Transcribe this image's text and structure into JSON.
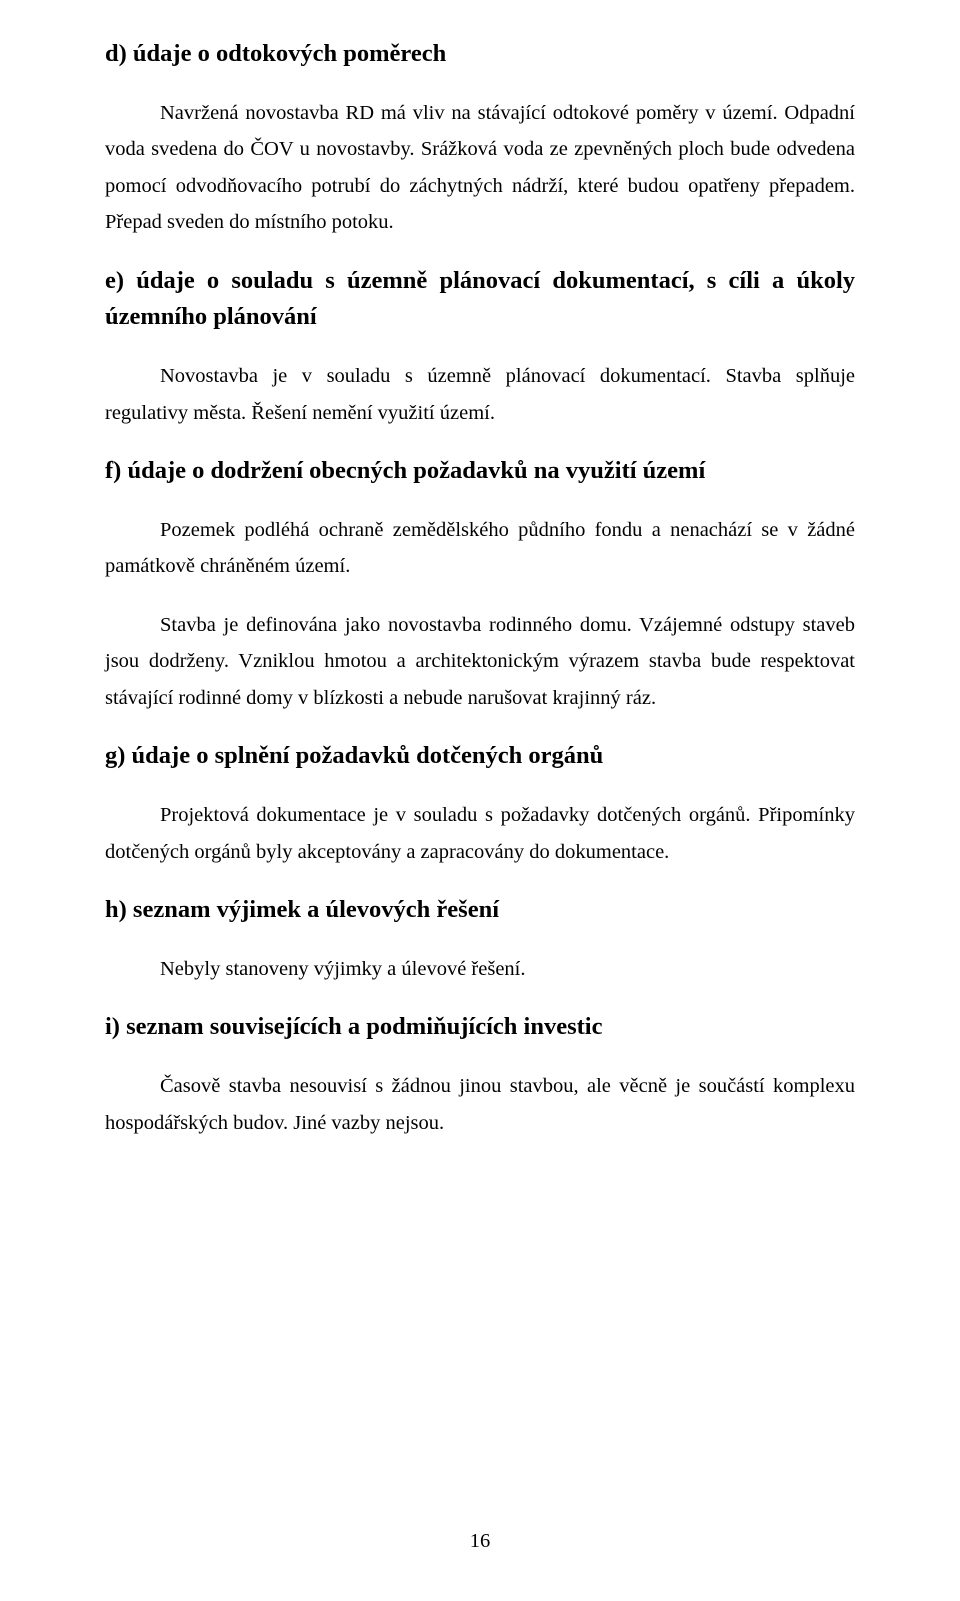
{
  "sections": {
    "d": {
      "heading": "d) údaje o odtokových poměrech",
      "para1": "Navržená novostavba RD má vliv na stávající odtokové poměry v území. Odpadní voda svedena do ČOV u novostavby. Srážková voda ze zpevněných ploch bude odvedena pomocí odvodňovacího potrubí do záchytných nádrží, které budou opatřeny přepadem. Přepad sveden do místního potoku."
    },
    "e": {
      "heading": "e) údaje o souladu s územně plánovací dokumentací, s cíli a úkoly územního plánování",
      "para1": "Novostavba je v souladu s územně plánovací dokumentací. Stavba splňuje regulativy města. Řešení nemění využití území."
    },
    "f": {
      "heading": "f) údaje o dodržení obecných požadavků na využití území",
      "para1": "Pozemek podléhá ochraně zemědělského půdního fondu a nenachází se v žádné památkově chráněném území.",
      "para2": "Stavba je definována jako novostavba rodinného domu. Vzájemné odstupy staveb jsou dodrženy. Vzniklou hmotou a architektonickým výrazem stavba bude respektovat stávající rodinné domy v blízkosti a nebude narušovat krajinný ráz."
    },
    "g": {
      "heading": "g) údaje o splnění požadavků dotčených orgánů",
      "para1": "Projektová dokumentace je v souladu s požadavky dotčených orgánů. Připomínky dotčených orgánů byly akceptovány a zapracovány do dokumentace."
    },
    "h": {
      "heading": "h) seznam výjimek a úlevových řešení",
      "para1": "Nebyly stanoveny výjimky a úlevové řešení."
    },
    "i": {
      "heading": "i) seznam souvisejících a podmiňujících investic",
      "para1": "Časově stavba nesouvisí s žádnou jinou stavbou, ale věcně je součástí komplexu hospodářských budov. Jiné vazby nejsou."
    }
  },
  "page_number": "16"
}
